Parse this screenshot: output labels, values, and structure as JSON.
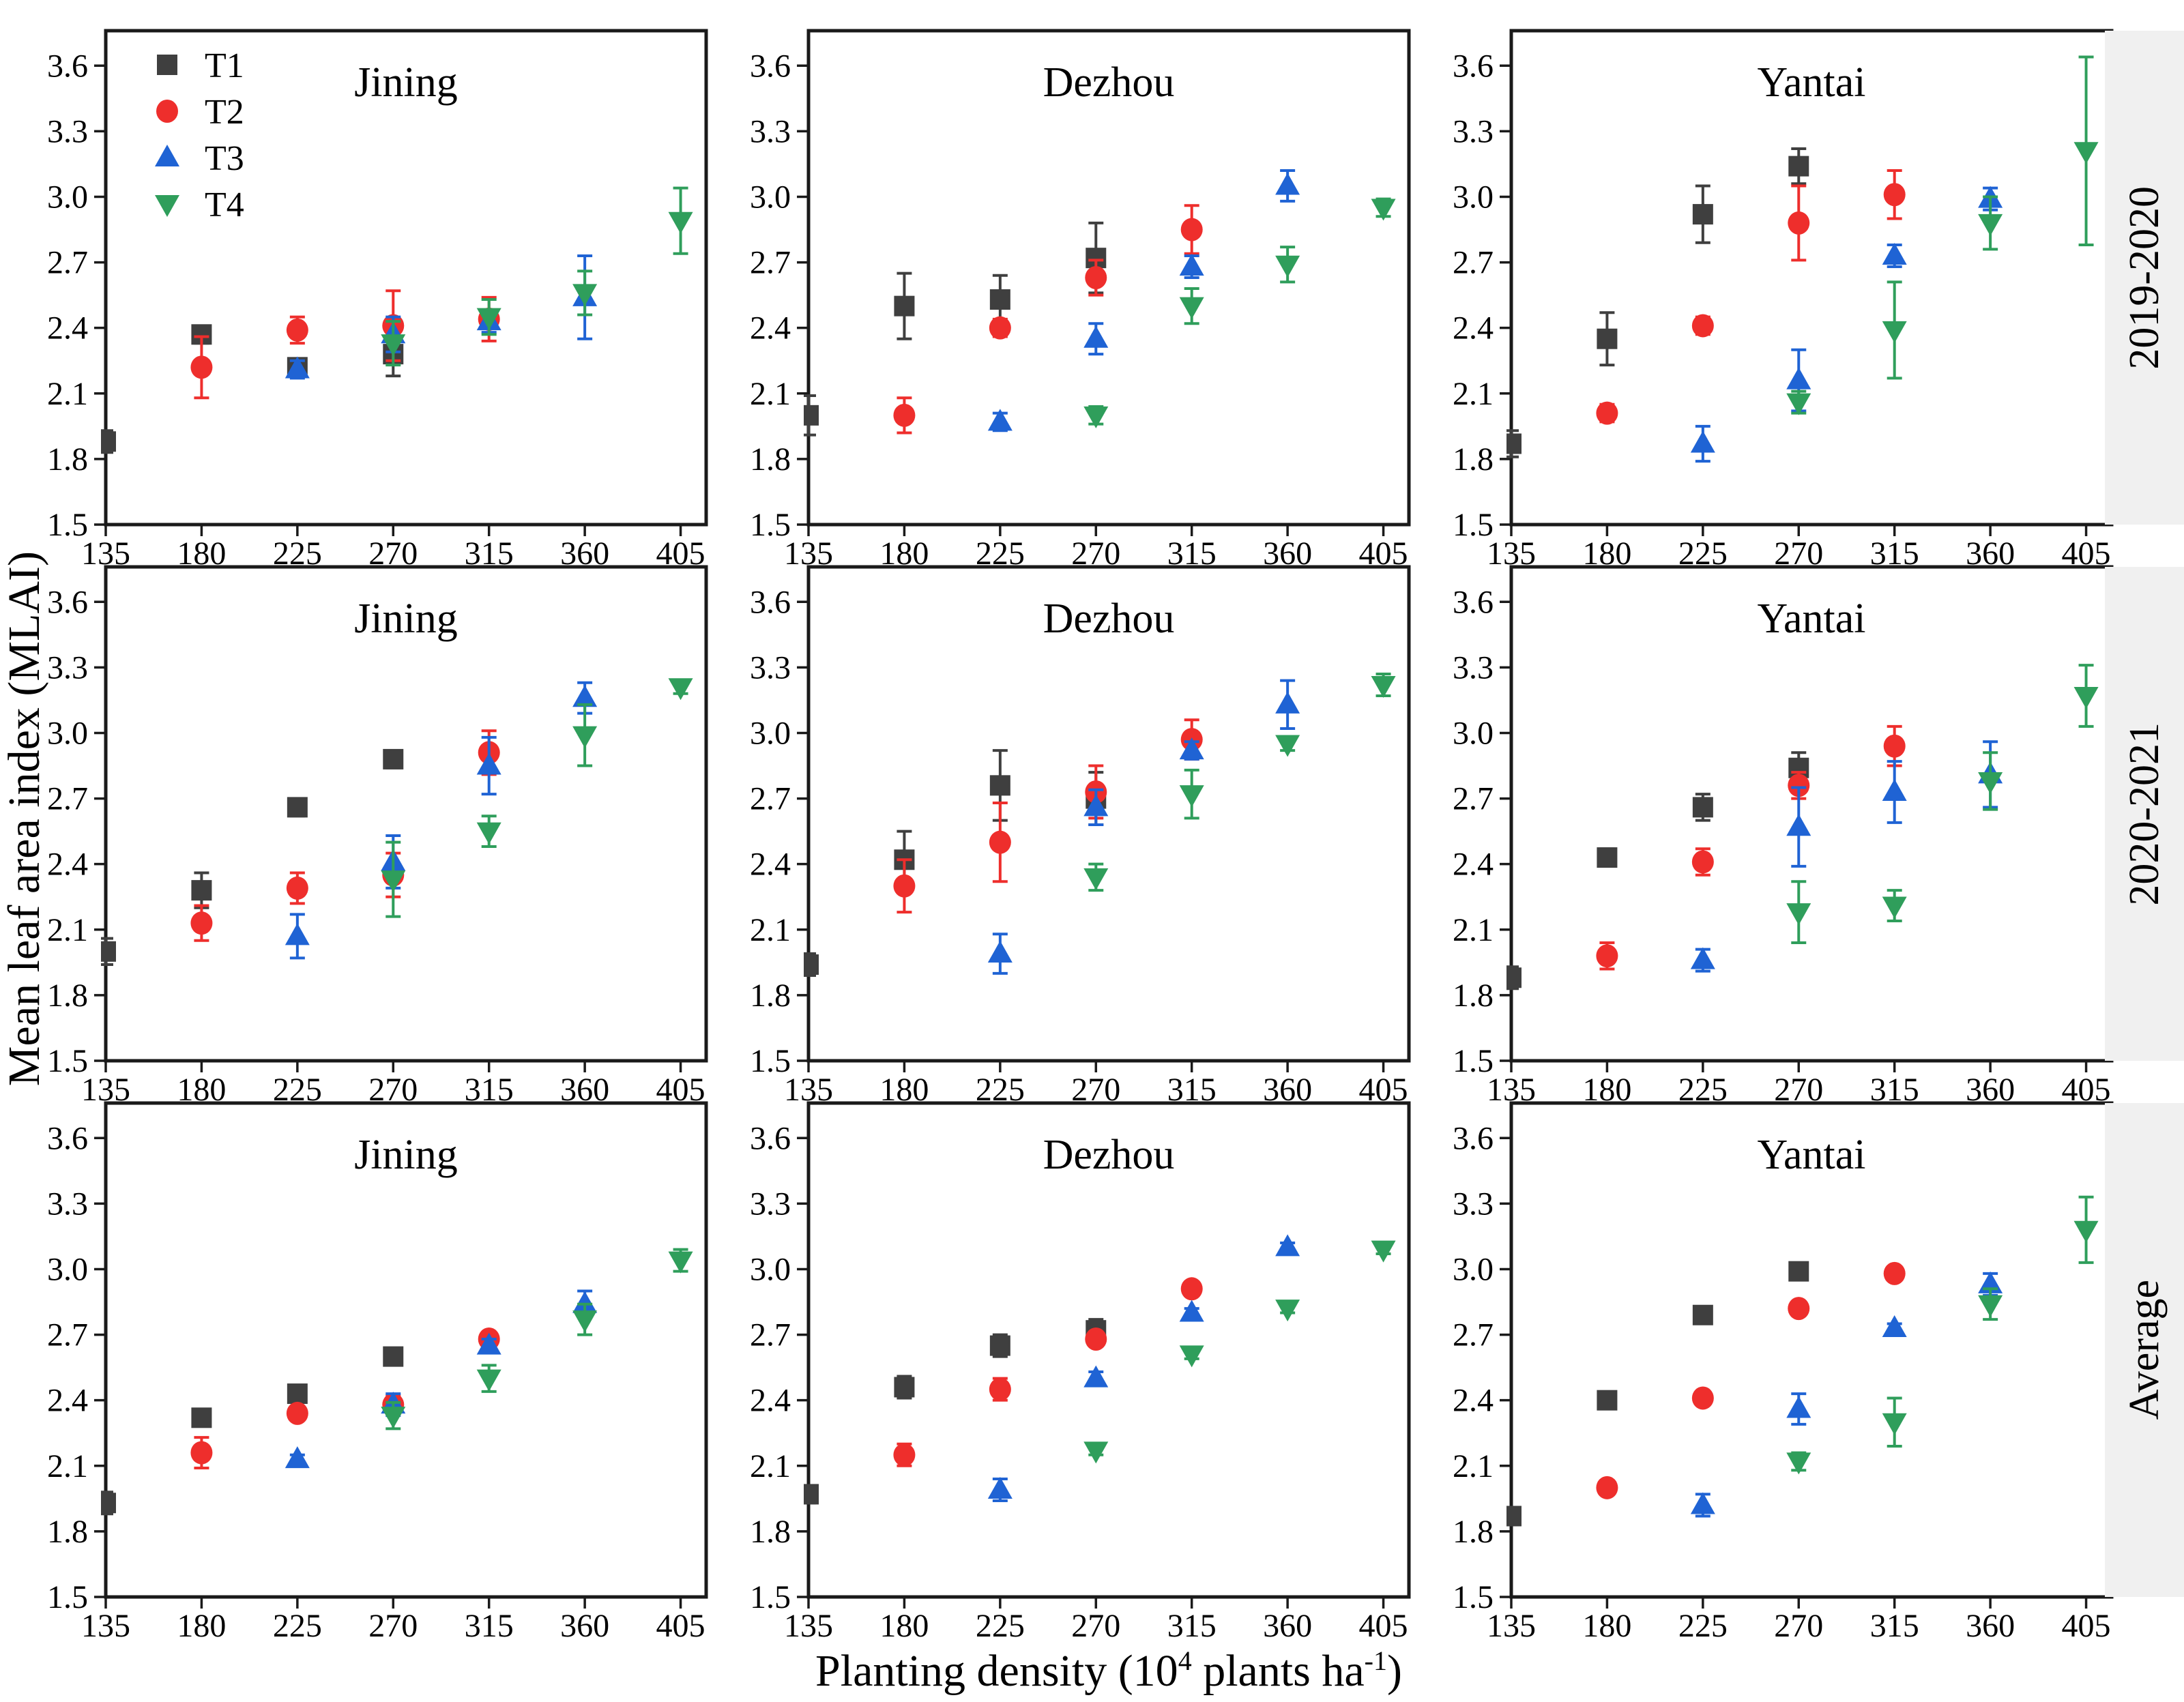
{
  "chart_data": {
    "type": "scatter",
    "y_label": "Mean leaf area index (MLAI)",
    "x_label": "Planting density (10^4 plants ha^-1)",
    "x_label_parts": {
      "pre": "Planting density (10",
      "sup1": "4",
      "mid": " plants ha",
      "sup2": "-1",
      "post": ")"
    },
    "row_labels": [
      "2019-2020",
      "2020-2021",
      "Average"
    ],
    "col_titles": [
      "Jining",
      "Dezhou",
      "Yantai"
    ],
    "x_ticks": [
      135,
      180,
      225,
      270,
      315,
      360,
      405
    ],
    "y_ticks": [
      1.5,
      1.8,
      2.1,
      2.4,
      2.7,
      3.0,
      3.3,
      3.6
    ],
    "x_range": [
      135,
      417
    ],
    "y_range": [
      1.5,
      3.76
    ],
    "grid": false,
    "legend_position": "top-left-first-panel",
    "legend": [
      {
        "label": "T1",
        "marker": "square",
        "color": "#3f3f3f"
      },
      {
        "label": "T2",
        "marker": "circle",
        "color": "#ee2e2c"
      },
      {
        "label": "T3",
        "marker": "triangle-up",
        "color": "#1f63d4"
      },
      {
        "label": "T4",
        "marker": "triangle-down",
        "color": "#2f9e5b"
      }
    ],
    "panels": [
      {
        "row": "2019-2020",
        "location": "Jining",
        "legend": true,
        "series": [
          {
            "name": "T1",
            "x": [
              135,
              180,
              225,
              270
            ],
            "y": [
              1.88,
              2.37,
              2.22,
              2.28
            ],
            "err": [
              0.05,
              0.04,
              0.03,
              0.1
            ]
          },
          {
            "name": "T2",
            "x": [
              180,
              225,
              270,
              315
            ],
            "y": [
              2.22,
              2.39,
              2.41,
              2.44
            ],
            "err": [
              0.14,
              0.06,
              0.16,
              0.1
            ]
          },
          {
            "name": "T3",
            "x": [
              225,
              270,
              315,
              360
            ],
            "y": [
              2.21,
              2.37,
              2.43,
              2.54
            ],
            "err": [
              0.04,
              0.08,
              0.05,
              0.19
            ]
          },
          {
            "name": "T4",
            "x": [
              270,
              315,
              360,
              405
            ],
            "y": [
              2.33,
              2.45,
              2.56,
              2.89
            ],
            "err": [
              0.1,
              0.08,
              0.1,
              0.15
            ]
          }
        ]
      },
      {
        "row": "2019-2020",
        "location": "Dezhou",
        "legend": false,
        "series": [
          {
            "name": "T1",
            "x": [
              135,
              180,
              225,
              270
            ],
            "y": [
              2.0,
              2.5,
              2.53,
              2.72
            ],
            "err": [
              0.09,
              0.15,
              0.11,
              0.16
            ]
          },
          {
            "name": "T2",
            "x": [
              180,
              225,
              270,
              315
            ],
            "y": [
              2.0,
              2.4,
              2.63,
              2.85
            ],
            "err": [
              0.08,
              0.04,
              0.08,
              0.11
            ]
          },
          {
            "name": "T3",
            "x": [
              225,
              270,
              315,
              360
            ],
            "y": [
              1.97,
              2.35,
              2.68,
              3.05
            ],
            "err": [
              0.04,
              0.07,
              0.05,
              0.07
            ]
          },
          {
            "name": "T4",
            "x": [
              270,
              315,
              360,
              405
            ],
            "y": [
              2.0,
              2.5,
              2.69,
              2.95
            ],
            "err": [
              0.04,
              0.08,
              0.08,
              0.04
            ]
          }
        ]
      },
      {
        "row": "2019-2020",
        "location": "Yantai",
        "legend": false,
        "series": [
          {
            "name": "T1",
            "x": [
              135,
              180,
              225,
              270
            ],
            "y": [
              1.87,
              2.35,
              2.92,
              3.14
            ],
            "err": [
              0.06,
              0.12,
              0.13,
              0.08
            ]
          },
          {
            "name": "T2",
            "x": [
              180,
              225,
              270,
              315
            ],
            "y": [
              2.01,
              2.41,
              2.88,
              3.01
            ],
            "err": [
              0.04,
              0.04,
              0.17,
              0.11
            ]
          },
          {
            "name": "T3",
            "x": [
              225,
              270,
              315,
              360
            ],
            "y": [
              1.87,
              2.16,
              2.73,
              2.99
            ],
            "err": [
              0.08,
              0.14,
              0.05,
              0.05
            ]
          },
          {
            "name": "T4",
            "x": [
              270,
              315,
              360,
              405
            ],
            "y": [
              2.06,
              2.39,
              2.88,
              3.21
            ],
            "err": [
              0.05,
              0.22,
              0.12,
              0.43
            ]
          }
        ]
      },
      {
        "row": "2020-2021",
        "location": "Jining",
        "legend": false,
        "series": [
          {
            "name": "T1",
            "x": [
              135,
              180,
              225,
              270
            ],
            "y": [
              2.0,
              2.28,
              2.66,
              2.88
            ],
            "err": [
              0.06,
              0.08,
              0.04,
              0.04
            ]
          },
          {
            "name": "T2",
            "x": [
              180,
              225,
              270,
              315
            ],
            "y": [
              2.13,
              2.29,
              2.35,
              2.91
            ],
            "err": [
              0.08,
              0.07,
              0.1,
              0.1
            ]
          },
          {
            "name": "T3",
            "x": [
              225,
              270,
              315,
              360
            ],
            "y": [
              2.07,
              2.41,
              2.85,
              3.16
            ],
            "err": [
              0.1,
              0.12,
              0.13,
              0.07
            ]
          },
          {
            "name": "T4",
            "x": [
              270,
              315,
              360,
              405
            ],
            "y": [
              2.33,
              2.55,
              2.99,
              3.21
            ],
            "err": [
              0.17,
              0.07,
              0.14,
              0.03
            ]
          }
        ]
      },
      {
        "row": "2020-2021",
        "location": "Dezhou",
        "legend": false,
        "series": [
          {
            "name": "T1",
            "x": [
              135,
              180,
              225,
              270
            ],
            "y": [
              1.94,
              2.42,
              2.76,
              2.7
            ],
            "err": [
              0.05,
              0.13,
              0.16,
              0.12
            ]
          },
          {
            "name": "T2",
            "x": [
              180,
              225,
              270,
              315
            ],
            "y": [
              2.3,
              2.5,
              2.73,
              2.97
            ],
            "err": [
              0.12,
              0.18,
              0.12,
              0.09
            ]
          },
          {
            "name": "T3",
            "x": [
              225,
              270,
              315,
              360
            ],
            "y": [
              1.99,
              2.66,
              2.92,
              3.13
            ],
            "err": [
              0.09,
              0.08,
              0.04,
              0.11
            ]
          },
          {
            "name": "T4",
            "x": [
              270,
              315,
              360,
              405
            ],
            "y": [
              2.34,
              2.72,
              2.95,
              3.22
            ],
            "err": [
              0.06,
              0.11,
              0.03,
              0.05
            ]
          }
        ]
      },
      {
        "row": "2020-2021",
        "location": "Yantai",
        "legend": false,
        "series": [
          {
            "name": "T1",
            "x": [
              135,
              180,
              225,
              270
            ],
            "y": [
              1.88,
              2.43,
              2.66,
              2.84
            ],
            "err": [
              0.05,
              0.04,
              0.06,
              0.07
            ]
          },
          {
            "name": "T2",
            "x": [
              180,
              225,
              270,
              315
            ],
            "y": [
              1.98,
              2.41,
              2.76,
              2.94
            ],
            "err": [
              0.06,
              0.06,
              0.06,
              0.09
            ]
          },
          {
            "name": "T3",
            "x": [
              225,
              270,
              315,
              360
            ],
            "y": [
              1.96,
              2.57,
              2.73,
              2.81
            ],
            "err": [
              0.05,
              0.18,
              0.14,
              0.15
            ]
          },
          {
            "name": "T4",
            "x": [
              270,
              315,
              360,
              405
            ],
            "y": [
              2.18,
              2.21,
              2.78,
              3.17
            ],
            "err": [
              0.14,
              0.07,
              0.13,
              0.14
            ]
          }
        ]
      },
      {
        "row": "Average",
        "location": "Jining",
        "legend": false,
        "series": [
          {
            "name": "T1",
            "x": [
              135,
              180,
              225,
              270
            ],
            "y": [
              1.93,
              2.32,
              2.43,
              2.6
            ],
            "err": [
              0.05,
              0.03,
              0.03,
              0.03
            ]
          },
          {
            "name": "T2",
            "x": [
              180,
              225,
              270,
              315
            ],
            "y": [
              2.16,
              2.34,
              2.38,
              2.68
            ],
            "err": [
              0.07,
              0.03,
              0.04,
              0.03
            ]
          },
          {
            "name": "T3",
            "x": [
              225,
              270,
              315,
              360
            ],
            "y": [
              2.13,
              2.38,
              2.65,
              2.84
            ],
            "err": [
              0.02,
              0.05,
              0.03,
              0.06
            ]
          },
          {
            "name": "T4",
            "x": [
              270,
              315,
              360,
              405
            ],
            "y": [
              2.33,
              2.5,
              2.77,
              3.04
            ],
            "err": [
              0.06,
              0.06,
              0.07,
              0.05
            ]
          }
        ]
      },
      {
        "row": "Average",
        "location": "Dezhou",
        "legend": false,
        "series": [
          {
            "name": "T1",
            "x": [
              135,
              180,
              225,
              270
            ],
            "y": [
              1.97,
              2.46,
              2.65,
              2.72
            ],
            "err": [
              0.04,
              0.05,
              0.05,
              0.05
            ]
          },
          {
            "name": "T2",
            "x": [
              180,
              225,
              270,
              315
            ],
            "y": [
              2.15,
              2.45,
              2.68,
              2.91
            ],
            "err": [
              0.05,
              0.05,
              0.03,
              0.03
            ]
          },
          {
            "name": "T3",
            "x": [
              225,
              270,
              315,
              360
            ],
            "y": [
              1.99,
              2.5,
              2.8,
              3.1
            ],
            "err": [
              0.05,
              0.03,
              0.02,
              0.02
            ]
          },
          {
            "name": "T4",
            "x": [
              270,
              315,
              360,
              405
            ],
            "y": [
              2.17,
              2.61,
              2.82,
              3.09
            ],
            "err": [
              0.02,
              0.02,
              0.02,
              0.02
            ]
          }
        ]
      },
      {
        "row": "Average",
        "location": "Yantai",
        "legend": false,
        "series": [
          {
            "name": "T1",
            "x": [
              135,
              180,
              225,
              270
            ],
            "y": [
              1.87,
              2.4,
              2.79,
              2.99
            ],
            "err": [
              0.04,
              0.02,
              0.02,
              0.02
            ]
          },
          {
            "name": "T2",
            "x": [
              180,
              225,
              270,
              315
            ],
            "y": [
              2.0,
              2.41,
              2.82,
              2.98
            ],
            "err": [
              0.02,
              0.02,
              0.02,
              0.02
            ]
          },
          {
            "name": "T3",
            "x": [
              225,
              270,
              315,
              360
            ],
            "y": [
              1.92,
              2.36,
              2.73,
              2.93
            ],
            "err": [
              0.05,
              0.07,
              0.02,
              0.05
            ]
          },
          {
            "name": "T4",
            "x": [
              270,
              315,
              360,
              405
            ],
            "y": [
              2.12,
              2.3,
              2.84,
              3.18
            ],
            "err": [
              0.04,
              0.11,
              0.07,
              0.15
            ]
          }
        ]
      }
    ],
    "style": {
      "frame_color": "#1a1a1a",
      "strip_background": "#f0f0f0",
      "text_color": "#000000"
    }
  }
}
